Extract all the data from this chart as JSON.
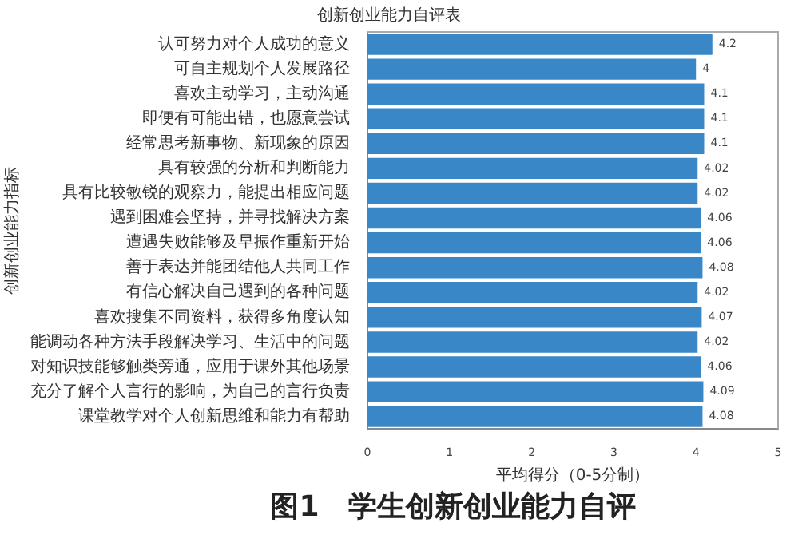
{
  "chart_data": {
    "type": "bar",
    "orientation": "horizontal",
    "title": "创新创业能力自评表",
    "xlabel": "平均得分（0-5分制）",
    "ylabel": "创新创业能力指标",
    "categories": [
      "认可努力对个人成功的意义",
      "可自主规划个人发展路径",
      "喜欢主动学习，主动沟通",
      "即便有可能出错，也愿意尝试",
      "经常思考新事物、新现象的原因",
      "具有较强的分析和判断能力",
      "具有比较敏锐的观察力，能提出相应问题",
      "遇到困难会坚持，并寻找解决方案",
      "遭遇失败能够及早振作重新开始",
      "善于表达并能团结他人共同工作",
      "有信心解决自己遇到的各种问题",
      "喜欢搜集不同资料，获得多角度认知",
      "能调动各种方法手段解决学习、生活中的问题",
      "对知识技能够触类旁通，应用于课外其他场景",
      "充分了解个人言行的影响，为自己的言行负责",
      "课堂教学对个人创新思维和能力有帮助"
    ],
    "values": [
      4.2,
      4,
      4.1,
      4.1,
      4.1,
      4.02,
      4.02,
      4.06,
      4.06,
      4.08,
      4.02,
      4.07,
      4.02,
      4.06,
      4.09,
      4.08
    ],
    "color": "#3a87c8",
    "xlim": [
      0,
      5
    ],
    "xticks": [
      0,
      1,
      2,
      3,
      4,
      5
    ],
    "grid": false,
    "legend": false,
    "data_labels": true,
    "annotations": [
      "图1　学生创新创业能力自评"
    ]
  }
}
